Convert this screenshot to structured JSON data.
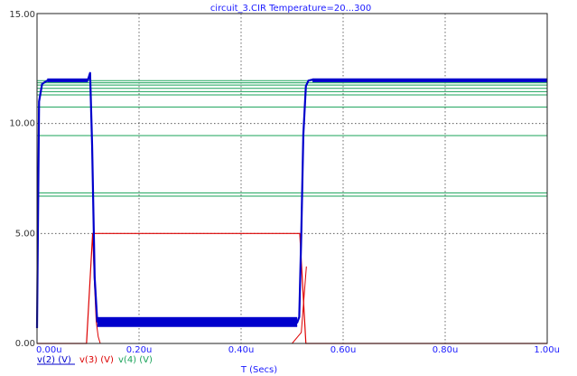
{
  "chart_data": {
    "type": "line",
    "title": "circuit_3.CIR Temperature=20...300",
    "xlabel": "T (Secs)",
    "ylabel": "",
    "xlim": [
      0,
      1.0
    ],
    "ylim": [
      0,
      15
    ],
    "grid": true,
    "x_ticks": [
      "0.00u",
      "0.20u",
      "0.40u",
      "0.60u",
      "0.80u",
      "1.00u"
    ],
    "y_ticks": [
      "0.00",
      "5.00",
      "10.00",
      "15.00"
    ],
    "legend_position": "bottom-left",
    "series": [
      {
        "name": "v(2) (V)",
        "color": "#0000cc",
        "x": [
          0,
          0.004,
          0.01,
          0.02,
          0.1,
          0.104,
          0.108,
          0.113,
          0.118,
          0.125,
          0.2,
          0.3,
          0.4,
          0.51,
          0.514,
          0.518,
          0.522,
          0.527,
          0.532,
          0.54,
          0.6,
          0.8,
          1.0
        ],
        "y": [
          0.7,
          11.0,
          11.8,
          11.95,
          12.0,
          12.3,
          9.0,
          3.0,
          1.0,
          0.95,
          0.95,
          0.95,
          0.95,
          0.95,
          1.2,
          5.0,
          9.5,
          11.7,
          11.95,
          12.0,
          12.0,
          12.0,
          12.0
        ]
      },
      {
        "name": "v(3) (V)",
        "color": "#dd0000",
        "x": [
          0,
          0.097,
          0.103,
          0.109,
          0.2,
          0.4,
          0.515,
          0.521,
          0.527,
          0.6,
          0.8,
          1.0
        ],
        "y": [
          0,
          0,
          2.5,
          5.0,
          5.0,
          5.0,
          5.0,
          2.5,
          0,
          0,
          0,
          0
        ],
        "ext_x": [
          0.109,
          0.112,
          0.116,
          0.12,
          0.124,
          0.5,
          0.518,
          0.523,
          0.528
        ],
        "ext_y": [
          5.0,
          3.0,
          1.0,
          0.3,
          0,
          0,
          0.5,
          2.0,
          3.5
        ]
      },
      {
        "name": "v(4) (V)",
        "color": "#1aa35a",
        "levels": [
          11.95,
          11.85,
          11.75,
          11.6,
          11.45,
          11.3,
          10.75,
          9.45,
          6.85,
          6.7
        ],
        "x": [
          0,
          1.0
        ]
      }
    ]
  }
}
